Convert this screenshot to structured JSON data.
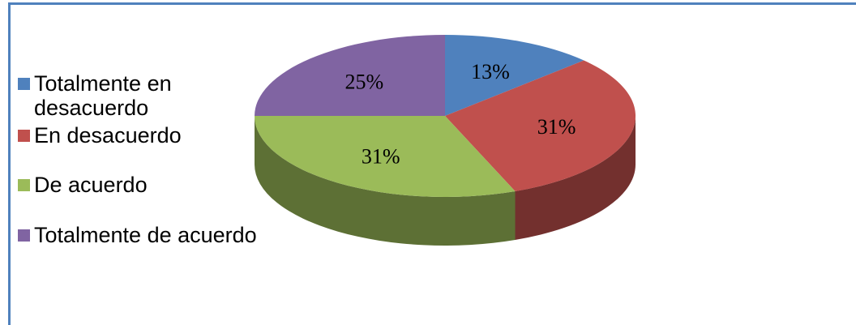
{
  "chart_data": {
    "type": "pie",
    "categories": [
      "Totalmente en desacuerdo",
      "En desacuerdo",
      "De acuerdo",
      "Totalmente de acuerdo"
    ],
    "values": [
      13,
      31,
      31,
      25
    ],
    "value_labels": [
      "13%",
      "31%",
      "31%",
      "25%"
    ],
    "colors": [
      "#4f81bd",
      "#c0504d",
      "#9bbb59",
      "#8064a2"
    ],
    "legend": "left"
  }
}
